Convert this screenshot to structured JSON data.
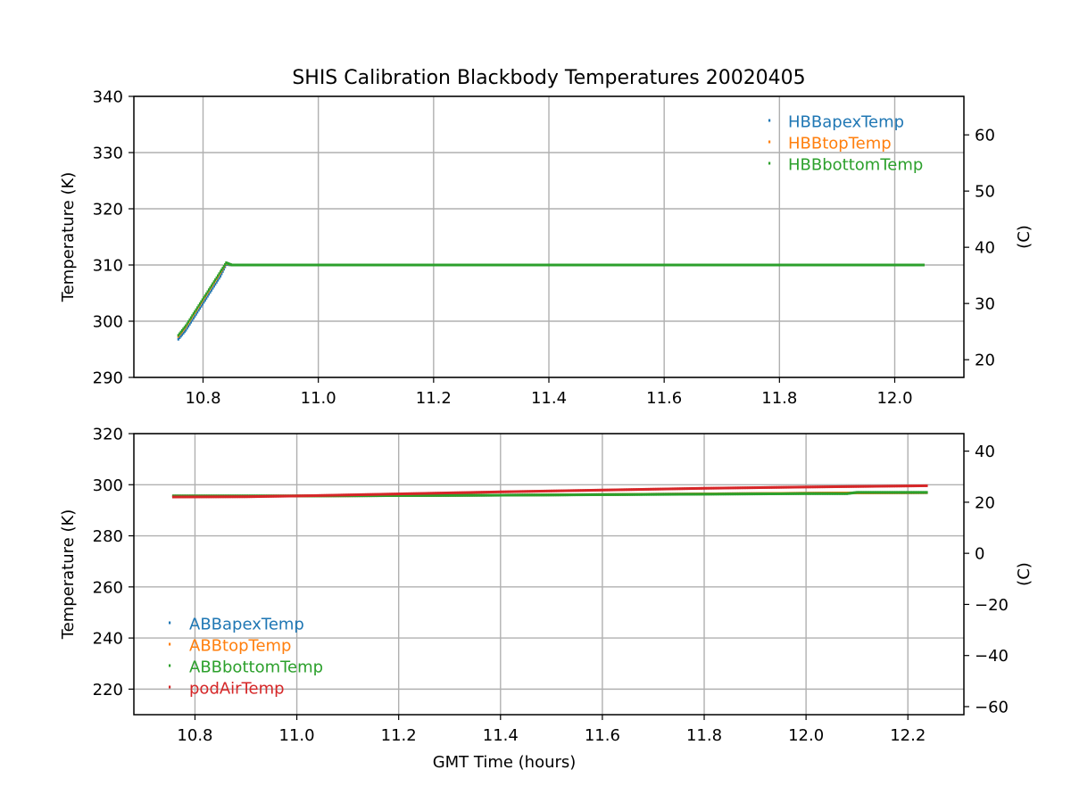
{
  "figure": {
    "title": "SHIS Calibration Blackbody Temperatures 20020405"
  },
  "chart_data": [
    {
      "type": "scatter",
      "id": "hbb",
      "title": "SHIS Calibration Blackbody Temperatures 20020405",
      "xlabel": "",
      "ylabel": "Temperature (K)",
      "ylabel_right": "(C)",
      "xlim": [
        10.68,
        12.12
      ],
      "ylim": [
        290,
        340
      ],
      "ylim_right": [
        16.85,
        66.85
      ],
      "xticks": [
        10.8,
        11.0,
        11.2,
        11.4,
        11.6,
        11.8,
        12.0
      ],
      "xtick_labels": [
        "10.8",
        "11.0",
        "11.2",
        "11.4",
        "11.6",
        "11.8",
        "12.0"
      ],
      "yticks": [
        290,
        300,
        310,
        320,
        330,
        340
      ],
      "ytick_labels": [
        "290",
        "300",
        "310",
        "320",
        "330",
        "340"
      ],
      "yticks_right": [
        20,
        30,
        40,
        50,
        60
      ],
      "ytick_labels_right": [
        "20",
        "30",
        "40",
        "50",
        "60"
      ],
      "grid": true,
      "legend_position": "top-right",
      "series": [
        {
          "name": "HBBapexTemp",
          "color": "#1f77b4",
          "x": [
            10.757,
            10.77,
            10.79,
            10.81,
            10.83,
            10.84,
            10.85,
            10.9,
            11.2,
            11.6,
            12.05
          ],
          "y": [
            296.8,
            298.4,
            301.6,
            304.8,
            308.0,
            310.1,
            310.0,
            310.0,
            310.0,
            310.0,
            310.0
          ]
        },
        {
          "name": "HBBtopTemp",
          "color": "#ff7f0e",
          "x": [
            10.757,
            10.77,
            10.79,
            10.81,
            10.83,
            10.84,
            10.85,
            10.9,
            11.2,
            11.6,
            12.05
          ],
          "y": [
            297.3,
            299.0,
            302.2,
            305.4,
            308.6,
            310.3,
            310.0,
            310.0,
            310.0,
            310.0,
            310.0
          ]
        },
        {
          "name": "HBBbottomTemp",
          "color": "#2ca02c",
          "x": [
            10.757,
            10.77,
            10.79,
            10.81,
            10.83,
            10.84,
            10.85,
            10.9,
            11.2,
            11.6,
            12.05
          ],
          "y": [
            297.5,
            299.2,
            302.4,
            305.6,
            308.8,
            310.4,
            310.0,
            310.0,
            310.0,
            310.0,
            310.0
          ]
        }
      ]
    },
    {
      "type": "scatter",
      "id": "abb",
      "title": "",
      "xlabel": "GMT Time (hours)",
      "ylabel": "Temperature (K)",
      "ylabel_right": "(C)",
      "xlim": [
        10.68,
        12.31
      ],
      "ylim": [
        210,
        320
      ],
      "ylim_right": [
        -63.15,
        46.85
      ],
      "xticks": [
        10.8,
        11.0,
        11.2,
        11.4,
        11.6,
        11.8,
        12.0,
        12.2
      ],
      "xtick_labels": [
        "10.8",
        "11.0",
        "11.2",
        "11.4",
        "11.6",
        "11.8",
        "12.0",
        "12.2"
      ],
      "yticks": [
        220,
        240,
        260,
        280,
        300,
        320
      ],
      "ytick_labels": [
        "220",
        "240",
        "260",
        "280",
        "300",
        "320"
      ],
      "yticks_right": [
        -60,
        -40,
        -20,
        0,
        20,
        40
      ],
      "ytick_labels_right": [
        "−60",
        "−40",
        "−20",
        "0",
        "20",
        "40"
      ],
      "grid": true,
      "legend_position": "lower-left",
      "series": [
        {
          "name": "ABBapexTemp",
          "color": "#1f77b4",
          "x": [
            10.757,
            11.0,
            11.4,
            11.8,
            12.1,
            12.237
          ],
          "y": [
            295.6,
            295.6,
            295.9,
            296.4,
            296.8,
            296.9
          ]
        },
        {
          "name": "ABBtopTemp",
          "color": "#ff7f0e",
          "x": [
            10.757,
            11.0,
            11.4,
            11.8,
            12.1,
            12.237
          ],
          "y": [
            295.6,
            295.6,
            295.9,
            296.4,
            296.8,
            296.9
          ]
        },
        {
          "name": "ABBbottomTemp",
          "color": "#2ca02c",
          "x": [
            10.757,
            11.0,
            11.4,
            11.8,
            12.0,
            12.08,
            12.1,
            12.237
          ],
          "y": [
            295.6,
            295.6,
            295.9,
            296.3,
            296.5,
            296.5,
            297.0,
            297.0
          ]
        },
        {
          "name": "podAirTemp",
          "color": "#d62728",
          "x": [
            10.757,
            10.9,
            11.0,
            11.2,
            11.4,
            11.6,
            11.8,
            12.0,
            12.237
          ],
          "y": [
            295.2,
            295.3,
            295.6,
            296.4,
            297.2,
            297.9,
            298.6,
            299.1,
            299.6
          ]
        }
      ]
    }
  ]
}
